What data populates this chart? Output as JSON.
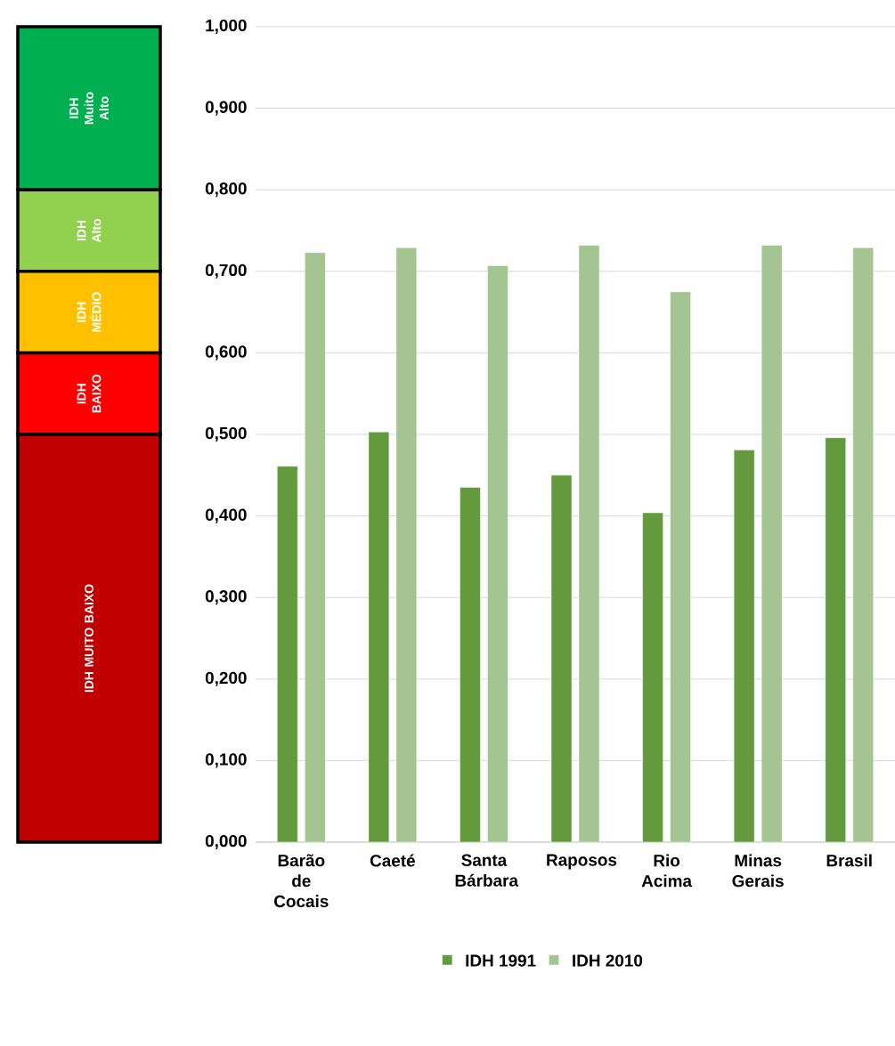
{
  "chart_data": [
    {
      "type": "bar",
      "stacked": true,
      "categories": [
        null
      ],
      "series": [
        {
          "name": "IDH MUITO BAIXO",
          "color": "#c00000",
          "values": [
            0.5
          ]
        },
        {
          "name": "IDH BAIXO",
          "color": "#ff0000",
          "values": [
            0.1
          ]
        },
        {
          "name": "IDH MÉDIO",
          "color": "#ffc000",
          "values": [
            0.1
          ]
        },
        {
          "name": "IDH Alto",
          "color": "#92d050",
          "values": [
            0.1
          ]
        },
        {
          "name": "IDH Muito Alto",
          "color": "#00b050",
          "values": [
            0.2
          ]
        }
      ],
      "ylim": [
        0,
        1
      ]
    },
    {
      "type": "bar",
      "categories": [
        "Barão de Cocais",
        "Caeté",
        "Santa Bárbara",
        "Raposos",
        "Rio Acima",
        "Minas Gerais",
        "Brasil"
      ],
      "series": [
        {
          "name": "IDH 1991",
          "color": "#639a3e",
          "values": [
            0.461,
            0.503,
            0.435,
            0.45,
            0.404,
            0.481,
            0.496
          ]
        },
        {
          "name": "IDH 2010",
          "color": "#a4c491",
          "values": [
            0.723,
            0.729,
            0.707,
            0.732,
            0.675,
            0.732,
            0.729
          ]
        }
      ],
      "ylim": [
        0,
        1
      ],
      "yticks": [
        {
          "value": 0,
          "label": "0,000"
        },
        {
          "value": 0.1,
          "label": "0,100"
        },
        {
          "value": 0.2,
          "label": "0,200"
        },
        {
          "value": 0.3,
          "label": "0,300"
        },
        {
          "value": 0.4,
          "label": "0,400"
        },
        {
          "value": 0.5,
          "label": "0,500"
        },
        {
          "value": 0.6,
          "label": "0,600"
        },
        {
          "value": 0.7,
          "label": "0,700"
        },
        {
          "value": 0.8,
          "label": "0,800"
        },
        {
          "value": 0.9,
          "label": "0,900"
        },
        {
          "value": 1,
          "label": "1,000"
        }
      ],
      "grid": "y",
      "legend": "bottom"
    }
  ]
}
